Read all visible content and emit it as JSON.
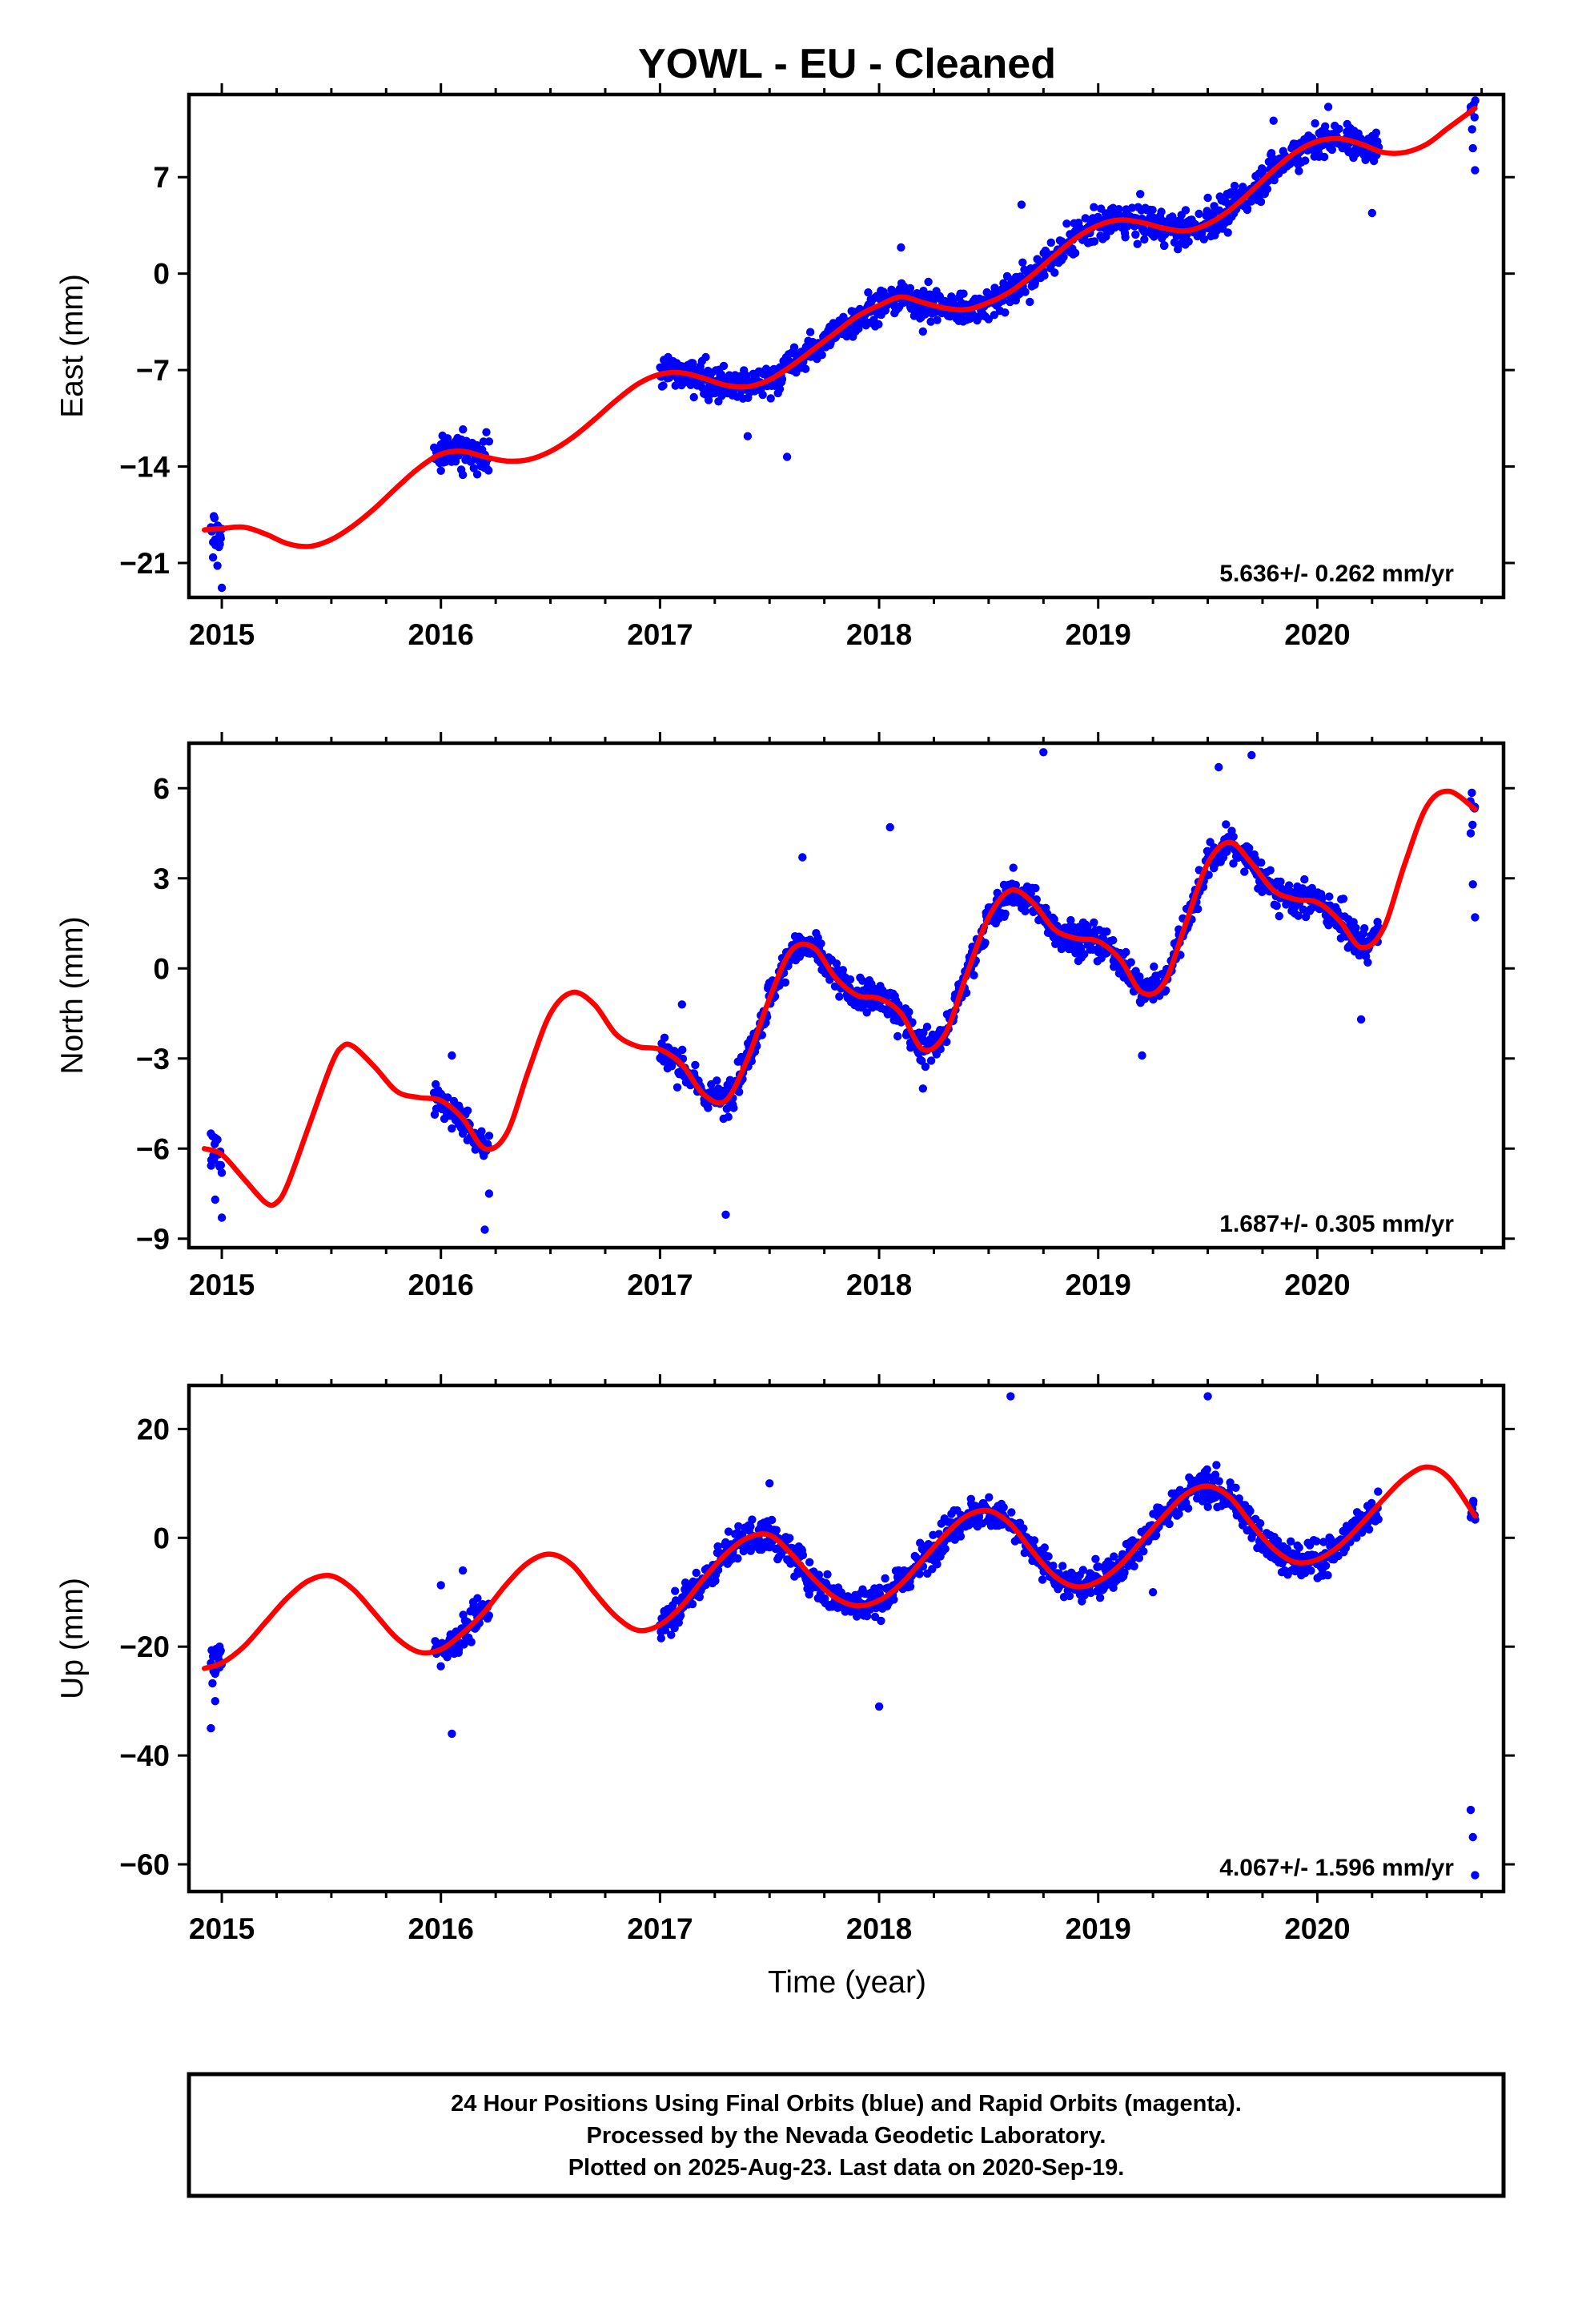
{
  "chart_data": {
    "type": "scatter",
    "title": "YOWL  - EU - Cleaned",
    "xlabel": "Time (year)",
    "x_ticks": [
      "2015",
      "2016",
      "2017",
      "2018",
      "2019",
      "2020"
    ],
    "xlim": [
      2014.85,
      2020.85
    ],
    "point_color": "#0000ff",
    "fit_color": "#ff0000",
    "panels": [
      {
        "id": "east",
        "ylabel": "East (mm)",
        "y_ticks": [
          "7",
          "0",
          "−7",
          "−14",
          "−21"
        ],
        "y_tick_values": [
          7,
          0,
          -7,
          -14,
          -21
        ],
        "ylim": [
          -23.5,
          13
        ],
        "rate": "5.636+/- 0.262 mm/yr",
        "data_segments": [
          {
            "start": 2014.95,
            "end": 2015.0,
            "points": [
              [
                2014.95,
                -18.6
              ],
              [
                2014.96,
                -20.6
              ],
              [
                2014.97,
                -19.3
              ],
              [
                2014.98,
                -21.2
              ],
              [
                2014.99,
                -19.0
              ],
              [
                2015.0,
                -22.8
              ]
            ]
          },
          {
            "start": 2015.97,
            "end": 2016.22,
            "points": [
              [
                2016.0,
                -12.4
              ],
              [
                2016.05,
                -13.6
              ],
              [
                2016.1,
                -14.6
              ],
              [
                2016.15,
                -12.8
              ],
              [
                2016.2,
                -14.1
              ]
            ]
          },
          {
            "start": 2017.0,
            "end": 2018.42,
            "points": [
              [
                2017.4,
                -11.8
              ],
              [
                2017.58,
                -13.3
              ],
              [
                2018.1,
                1.9
              ],
              [
                2018.2,
                -4.2
              ]
            ]
          },
          {
            "start": 2018.42,
            "end": 2020.28,
            "points": [
              [
                2018.65,
                5.0
              ],
              [
                2019.5,
                5.5
              ],
              [
                2019.8,
                11.1
              ],
              [
                2020.05,
                12.1
              ],
              [
                2020.25,
                4.4
              ]
            ]
          },
          {
            "start": 2020.7,
            "end": 2020.72,
            "points": [
              [
                2020.7,
                12.1
              ],
              [
                2020.71,
                9.1
              ],
              [
                2020.72,
                7.5
              ]
            ]
          }
        ],
        "fit": [
          [
            2014.92,
            -18.6
          ],
          [
            2015.0,
            -18.5
          ],
          [
            2015.1,
            -18.4
          ],
          [
            2015.2,
            -18.9
          ],
          [
            2015.3,
            -19.6
          ],
          [
            2015.4,
            -19.8
          ],
          [
            2015.5,
            -19.3
          ],
          [
            2015.6,
            -18.3
          ],
          [
            2015.7,
            -17.0
          ],
          [
            2015.8,
            -15.5
          ],
          [
            2015.9,
            -14.1
          ],
          [
            2016.0,
            -13.1
          ],
          [
            2016.1,
            -12.9
          ],
          [
            2016.2,
            -13.3
          ],
          [
            2016.3,
            -13.6
          ],
          [
            2016.4,
            -13.5
          ],
          [
            2016.5,
            -12.9
          ],
          [
            2016.6,
            -11.9
          ],
          [
            2016.7,
            -10.6
          ],
          [
            2016.8,
            -9.2
          ],
          [
            2016.9,
            -8.0
          ],
          [
            2017.0,
            -7.3
          ],
          [
            2017.1,
            -7.2
          ],
          [
            2017.2,
            -7.6
          ],
          [
            2017.3,
            -8.1
          ],
          [
            2017.4,
            -8.2
          ],
          [
            2017.5,
            -7.7
          ],
          [
            2017.6,
            -6.7
          ],
          [
            2017.7,
            -5.5
          ],
          [
            2017.8,
            -4.3
          ],
          [
            2017.9,
            -3.1
          ],
          [
            2018.0,
            -2.3
          ],
          [
            2018.1,
            -1.7
          ],
          [
            2018.2,
            -2.1
          ],
          [
            2018.3,
            -2.5
          ],
          [
            2018.4,
            -2.6
          ],
          [
            2018.5,
            -2.1
          ],
          [
            2018.6,
            -1.3
          ],
          [
            2018.7,
            -0.1
          ],
          [
            2018.8,
            1.3
          ],
          [
            2018.9,
            2.6
          ],
          [
            2019.0,
            3.5
          ],
          [
            2019.1,
            3.9
          ],
          [
            2019.2,
            3.7
          ],
          [
            2019.3,
            3.3
          ],
          [
            2019.4,
            3.1
          ],
          [
            2019.5,
            3.6
          ],
          [
            2019.6,
            4.6
          ],
          [
            2019.7,
            6.0
          ],
          [
            2019.8,
            7.5
          ],
          [
            2019.9,
            8.8
          ],
          [
            2020.0,
            9.6
          ],
          [
            2020.1,
            9.8
          ],
          [
            2020.2,
            9.4
          ],
          [
            2020.3,
            8.8
          ],
          [
            2020.4,
            8.8
          ],
          [
            2020.5,
            9.4
          ],
          [
            2020.6,
            10.6
          ],
          [
            2020.72,
            12.0
          ]
        ]
      },
      {
        "id": "north",
        "ylabel": "North (mm)",
        "y_ticks": [
          "6",
          "3",
          "0",
          "−3",
          "−6",
          "−9"
        ],
        "y_tick_values": [
          6,
          3,
          0,
          -3,
          -6,
          -9
        ],
        "ylim": [
          -9.3,
          7.5
        ],
        "rate": "1.687+/- 0.305 mm/yr",
        "data_segments": [
          {
            "start": 2014.95,
            "end": 2015.0,
            "points": [
              [
                2014.95,
                -5.5
              ],
              [
                2014.96,
                -6.4
              ],
              [
                2014.97,
                -7.7
              ],
              [
                2014.98,
                -5.7
              ],
              [
                2014.99,
                -6.6
              ],
              [
                2015.0,
                -8.3
              ]
            ]
          },
          {
            "start": 2015.97,
            "end": 2016.22,
            "points": [
              [
                2016.05,
                -2.9
              ],
              [
                2016.1,
                -5.5
              ],
              [
                2016.2,
                -8.7
              ],
              [
                2016.22,
                -7.5
              ]
            ]
          },
          {
            "start": 2017.0,
            "end": 2018.42,
            "points": [
              [
                2017.1,
                -1.2
              ],
              [
                2017.3,
                -8.2
              ],
              [
                2017.65,
                3.7
              ],
              [
                2018.05,
                4.7
              ],
              [
                2018.2,
                -4.0
              ]
            ]
          },
          {
            "start": 2018.42,
            "end": 2020.28,
            "points": [
              [
                2018.75,
                7.2
              ],
              [
                2019.2,
                -2.9
              ],
              [
                2019.55,
                6.7
              ],
              [
                2019.7,
                7.1
              ],
              [
                2020.2,
                -1.7
              ]
            ]
          },
          {
            "start": 2020.7,
            "end": 2020.72,
            "points": [
              [
                2020.7,
                4.5
              ],
              [
                2020.71,
                2.8
              ],
              [
                2020.72,
                1.7
              ]
            ]
          }
        ],
        "fit": [
          [
            2014.92,
            -6.0
          ],
          [
            2015.0,
            -6.2
          ],
          [
            2015.1,
            -7.0
          ],
          [
            2015.2,
            -7.8
          ],
          [
            2015.25,
            -7.8
          ],
          [
            2015.3,
            -7.2
          ],
          [
            2015.4,
            -5.2
          ],
          [
            2015.5,
            -3.2
          ],
          [
            2015.55,
            -2.6
          ],
          [
            2015.6,
            -2.6
          ],
          [
            2015.7,
            -3.3
          ],
          [
            2015.8,
            -4.1
          ],
          [
            2015.9,
            -4.3
          ],
          [
            2016.0,
            -4.4
          ],
          [
            2016.1,
            -5.0
          ],
          [
            2016.2,
            -6.0
          ],
          [
            2016.3,
            -5.5
          ],
          [
            2016.4,
            -3.4
          ],
          [
            2016.5,
            -1.5
          ],
          [
            2016.6,
            -0.8
          ],
          [
            2016.7,
            -1.2
          ],
          [
            2016.8,
            -2.2
          ],
          [
            2016.9,
            -2.6
          ],
          [
            2017.0,
            -2.7
          ],
          [
            2017.1,
            -3.2
          ],
          [
            2017.2,
            -4.2
          ],
          [
            2017.3,
            -4.4
          ],
          [
            2017.4,
            -3.0
          ],
          [
            2017.5,
            -1.0
          ],
          [
            2017.6,
            0.6
          ],
          [
            2017.7,
            0.7
          ],
          [
            2017.8,
            -0.3
          ],
          [
            2017.9,
            -0.9
          ],
          [
            2018.0,
            -1.0
          ],
          [
            2018.1,
            -1.5
          ],
          [
            2018.2,
            -2.7
          ],
          [
            2018.3,
            -2.2
          ],
          [
            2018.4,
            -0.2
          ],
          [
            2018.5,
            1.7
          ],
          [
            2018.6,
            2.6
          ],
          [
            2018.7,
            2.2
          ],
          [
            2018.8,
            1.3
          ],
          [
            2018.9,
            1.0
          ],
          [
            2019.0,
            0.9
          ],
          [
            2019.1,
            0.3
          ],
          [
            2019.2,
            -0.8
          ],
          [
            2019.3,
            -0.5
          ],
          [
            2019.4,
            1.5
          ],
          [
            2019.5,
            3.5
          ],
          [
            2019.6,
            4.2
          ],
          [
            2019.7,
            3.5
          ],
          [
            2019.8,
            2.6
          ],
          [
            2019.9,
            2.3
          ],
          [
            2020.0,
            2.2
          ],
          [
            2020.1,
            1.6
          ],
          [
            2020.2,
            0.7
          ],
          [
            2020.3,
            1.3
          ],
          [
            2020.4,
            3.5
          ],
          [
            2020.5,
            5.4
          ],
          [
            2020.6,
            5.9
          ],
          [
            2020.72,
            5.3
          ]
        ]
      },
      {
        "id": "up",
        "ylabel": "Up (mm)",
        "y_ticks": [
          "20",
          "0",
          "−20",
          "−40",
          "−60"
        ],
        "y_tick_values": [
          20,
          0,
          -20,
          -40,
          -60
        ],
        "ylim": [
          -65,
          28
        ],
        "rate": "4.067+/- 1.596 mm/yr",
        "data_segments": [
          {
            "start": 2014.95,
            "end": 2015.0,
            "points": [
              [
                2014.95,
                -35.0
              ],
              [
                2014.97,
                -30.0
              ],
              [
                2014.99,
                -20.0
              ]
            ]
          },
          {
            "start": 2015.97,
            "end": 2016.22,
            "points": [
              [
                2016.0,
                -8.7
              ],
              [
                2016.05,
                -36.0
              ],
              [
                2016.1,
                -6.0
              ]
            ]
          },
          {
            "start": 2017.0,
            "end": 2018.42,
            "points": [
              [
                2017.5,
                10.0
              ],
              [
                2018.0,
                -31.0
              ]
            ]
          },
          {
            "start": 2018.42,
            "end": 2020.28,
            "points": [
              [
                2018.6,
                26.0
              ],
              [
                2019.25,
                -10.0
              ],
              [
                2019.5,
                26.0
              ]
            ]
          },
          {
            "start": 2020.7,
            "end": 2020.72,
            "points": [
              [
                2020.7,
                -50.0
              ],
              [
                2020.71,
                -55.0
              ],
              [
                2020.72,
                -62.0
              ]
            ]
          }
        ],
        "fit": [
          [
            2014.92,
            -24.0
          ],
          [
            2015.0,
            -23.0
          ],
          [
            2015.1,
            -20.0
          ],
          [
            2015.2,
            -15.5
          ],
          [
            2015.3,
            -11.0
          ],
          [
            2015.4,
            -7.8
          ],
          [
            2015.5,
            -7.0
          ],
          [
            2015.6,
            -9.5
          ],
          [
            2015.7,
            -14.0
          ],
          [
            2015.8,
            -18.5
          ],
          [
            2015.9,
            -21.0
          ],
          [
            2016.0,
            -20.5
          ],
          [
            2016.1,
            -17.5
          ],
          [
            2016.2,
            -13.5
          ],
          [
            2016.3,
            -8.5
          ],
          [
            2016.4,
            -4.5
          ],
          [
            2016.5,
            -3.0
          ],
          [
            2016.6,
            -5.0
          ],
          [
            2016.7,
            -10.0
          ],
          [
            2016.8,
            -14.5
          ],
          [
            2016.9,
            -17.0
          ],
          [
            2017.0,
            -16.0
          ],
          [
            2017.1,
            -12.5
          ],
          [
            2017.2,
            -7.5
          ],
          [
            2017.3,
            -3.0
          ],
          [
            2017.4,
            0.0
          ],
          [
            2017.5,
            0.5
          ],
          [
            2017.6,
            -3.0
          ],
          [
            2017.7,
            -7.5
          ],
          [
            2017.8,
            -11.0
          ],
          [
            2017.9,
            -12.5
          ],
          [
            2018.0,
            -11.5
          ],
          [
            2018.1,
            -8.5
          ],
          [
            2018.2,
            -4.0
          ],
          [
            2018.3,
            0.5
          ],
          [
            2018.4,
            4.0
          ],
          [
            2018.5,
            5.0
          ],
          [
            2018.6,
            2.5
          ],
          [
            2018.7,
            -2.5
          ],
          [
            2018.8,
            -7.0
          ],
          [
            2018.9,
            -9.0
          ],
          [
            2019.0,
            -8.0
          ],
          [
            2019.1,
            -5.0
          ],
          [
            2019.2,
            -0.5
          ],
          [
            2019.3,
            4.0
          ],
          [
            2019.4,
            8.0
          ],
          [
            2019.5,
            9.5
          ],
          [
            2019.6,
            7.5
          ],
          [
            2019.7,
            2.5
          ],
          [
            2019.8,
            -2.0
          ],
          [
            2019.9,
            -4.5
          ],
          [
            2020.0,
            -4.0
          ],
          [
            2020.1,
            -1.5
          ],
          [
            2020.2,
            2.5
          ],
          [
            2020.3,
            7.0
          ],
          [
            2020.4,
            11.0
          ],
          [
            2020.5,
            13.0
          ],
          [
            2020.6,
            11.0
          ],
          [
            2020.72,
            4.0
          ]
        ]
      }
    ]
  },
  "footer": {
    "line1": "24 Hour Positions Using Final Orbits (blue) and Rapid Orbits (magenta).",
    "line2": "Processed by the Nevada Geodetic Laboratory.",
    "line3": "Plotted on 2025-Aug-23. Last data on 2020-Sep-19."
  }
}
